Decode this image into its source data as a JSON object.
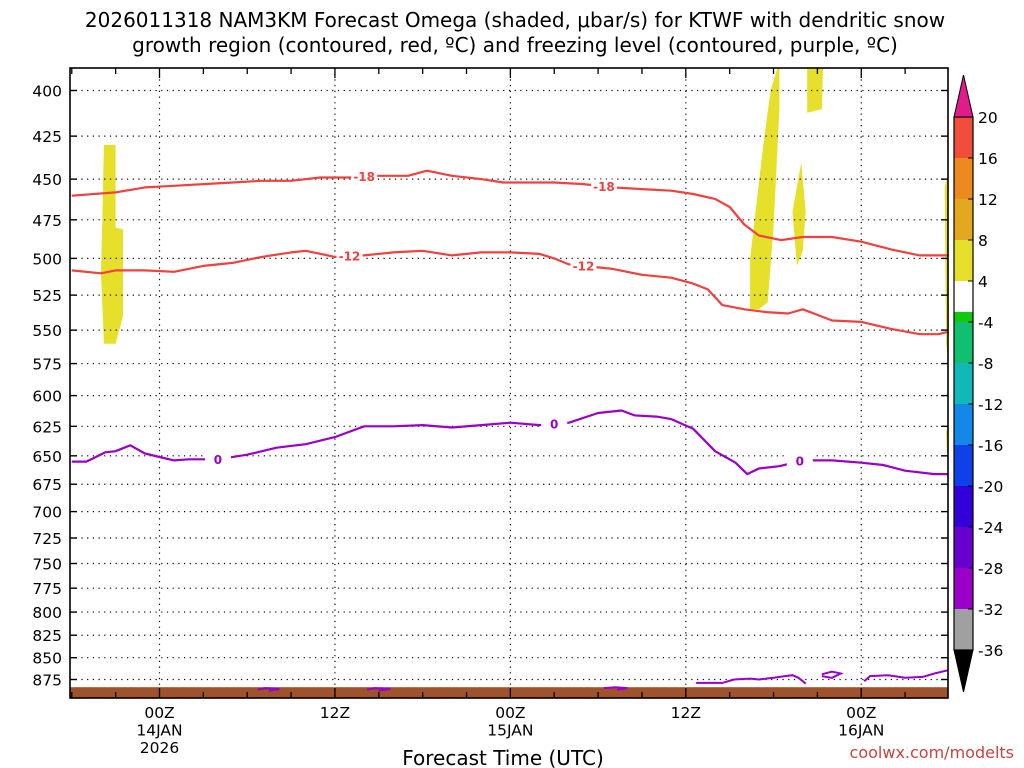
{
  "chart_data": {
    "type": "heatmap",
    "title_line1": "2026011318 NAM3KM Forecast Omega (shaded, μbar/s) for KTWF with dendritic snow",
    "title_line2": "growth region (contoured, red, ºC) and freezing level (contoured, purple, ºC)",
    "xlabel": "Forecast Time (UTC)",
    "credit": "coolwx.com/modelts",
    "x_unit": "hours since 2026-01-13 18Z",
    "xlim": [
      0,
      60
    ],
    "x_ticks": [
      {
        "hour": 6,
        "label1": "00Z",
        "label2": "14JAN",
        "label3": "2026"
      },
      {
        "hour": 18,
        "label1": "12Z",
        "label2": "",
        "label3": ""
      },
      {
        "hour": 30,
        "label1": "00Z",
        "label2": "15JAN",
        "label3": ""
      },
      {
        "hour": 42,
        "label1": "12Z",
        "label2": "",
        "label3": ""
      },
      {
        "hour": 54,
        "label1": "00Z",
        "label2": "16JAN",
        "label3": ""
      }
    ],
    "y_unit": "hPa",
    "ylim": [
      890,
      380
    ],
    "y_ticks": [
      400,
      425,
      450,
      475,
      500,
      525,
      550,
      575,
      600,
      625,
      650,
      675,
      700,
      725,
      750,
      775,
      800,
      825,
      850,
      875
    ],
    "grid": true,
    "colorbar": {
      "min": -36,
      "max": 20,
      "bins": [
        {
          "from": -36,
          "to": -32,
          "color": "#a0a0a0"
        },
        {
          "from": -32,
          "to": -28,
          "color": "#9a00c8"
        },
        {
          "from": -28,
          "to": -24,
          "color": "#6800d0"
        },
        {
          "from": -24,
          "to": -20,
          "color": "#3200d8"
        },
        {
          "from": -20,
          "to": -16,
          "color": "#1040e8"
        },
        {
          "from": -16,
          "to": -12,
          "color": "#1488e8"
        },
        {
          "from": -12,
          "to": -8,
          "color": "#10b8b8"
        },
        {
          "from": -8,
          "to": -4,
          "color": "#10c070"
        },
        {
          "from": -4,
          "to": -2,
          "color": "#10c810"
        },
        {
          "from": -2,
          "to": 4,
          "color": "#ffffff"
        },
        {
          "from": 4,
          "to": 8,
          "color": "#e6e02a"
        },
        {
          "from": 8,
          "to": 12,
          "color": "#e4a820"
        },
        {
          "from": 12,
          "to": 16,
          "color": "#ec8a1e"
        },
        {
          "from": 16,
          "to": 20,
          "color": "#f04e3a"
        }
      ],
      "labels": [
        20,
        16,
        12,
        8,
        4,
        -4,
        -8,
        -12,
        -16,
        -20,
        -24,
        -28,
        -32,
        -36
      ],
      "top_arrow_color": "#e01c8c",
      "bottom_arrow_color": "#000000"
    },
    "shaded_regions": [
      {
        "value": 5,
        "color": "#e6e02a",
        "polygon": [
          [
            2.2,
            430
          ],
          [
            3.0,
            430
          ],
          [
            3.0,
            480
          ],
          [
            3.5,
            481
          ],
          [
            3.5,
            540
          ],
          [
            3.0,
            560
          ],
          [
            2.2,
            560
          ],
          [
            2.0,
            510
          ],
          [
            2.1,
            470
          ]
        ]
      },
      {
        "value": 5,
        "color": "#e6e02a",
        "polygon": [
          [
            46.4,
            500
          ],
          [
            47.3,
            430
          ],
          [
            47.8,
            400
          ],
          [
            48.4,
            385
          ],
          [
            48.4,
            410
          ],
          [
            48.0,
            480
          ],
          [
            47.6,
            530
          ],
          [
            47.0,
            535
          ],
          [
            46.4,
            535
          ]
        ]
      },
      {
        "value": 5,
        "color": "#e6e02a",
        "polygon": [
          [
            50.3,
            385
          ],
          [
            51.4,
            385
          ],
          [
            51.3,
            410
          ],
          [
            50.3,
            412
          ]
        ]
      },
      {
        "value": 5,
        "color": "#e6e02a",
        "polygon": [
          [
            49.3,
            470
          ],
          [
            49.9,
            440
          ],
          [
            50.2,
            470
          ],
          [
            50.0,
            495
          ],
          [
            49.6,
            505
          ]
        ]
      },
      {
        "value": 5,
        "color": "#e6e02a",
        "polygon": [
          [
            59.7,
            455
          ],
          [
            60.0,
            445
          ],
          [
            60.0,
            575
          ],
          [
            59.8,
            560
          ]
        ]
      },
      {
        "value": 5,
        "color": "#e6e02a",
        "polygon": [
          [
            59.8,
            630
          ],
          [
            60.0,
            620
          ],
          [
            60.0,
            652
          ],
          [
            59.85,
            645
          ]
        ]
      }
    ],
    "contours": [
      {
        "value": -18,
        "label": "-18",
        "color": "#f04040",
        "label_hours": [
          20,
          36.4
        ],
        "points": [
          [
            0,
            460
          ],
          [
            3,
            458
          ],
          [
            5,
            455
          ],
          [
            7,
            454
          ],
          [
            9,
            453
          ],
          [
            11,
            452
          ],
          [
            13,
            451
          ],
          [
            15,
            451
          ],
          [
            17,
            449
          ],
          [
            19,
            449
          ],
          [
            21,
            448
          ],
          [
            23,
            448
          ],
          [
            24.3,
            445
          ],
          [
            26,
            448
          ],
          [
            28,
            450
          ],
          [
            29.5,
            452
          ],
          [
            31,
            452
          ],
          [
            33,
            452
          ],
          [
            35,
            453
          ],
          [
            37,
            455
          ],
          [
            39,
            456
          ],
          [
            41,
            457
          ],
          [
            42.5,
            459
          ],
          [
            44,
            462
          ],
          [
            45,
            467
          ],
          [
            46,
            478
          ],
          [
            47,
            485
          ],
          [
            48.5,
            488
          ],
          [
            50,
            486
          ],
          [
            52,
            486
          ],
          [
            54,
            489
          ],
          [
            56,
            494
          ],
          [
            58,
            498
          ],
          [
            60,
            498
          ]
        ]
      },
      {
        "value": -12,
        "label": "-12",
        "color": "#f04040",
        "label_hours": [
          19,
          35
        ],
        "points": [
          [
            0,
            508
          ],
          [
            2,
            510
          ],
          [
            3,
            508
          ],
          [
            5,
            508
          ],
          [
            7,
            509
          ],
          [
            9,
            505
          ],
          [
            11,
            503
          ],
          [
            13,
            499
          ],
          [
            15,
            496
          ],
          [
            16,
            495
          ],
          [
            18,
            499
          ],
          [
            20,
            498
          ],
          [
            22,
            496
          ],
          [
            24,
            495
          ],
          [
            26,
            498
          ],
          [
            28,
            496
          ],
          [
            30,
            496
          ],
          [
            32,
            497
          ],
          [
            33,
            500
          ],
          [
            34,
            504
          ],
          [
            35,
            505
          ],
          [
            36,
            506
          ],
          [
            37,
            507
          ],
          [
            39,
            511
          ],
          [
            41,
            513
          ],
          [
            42.5,
            517
          ],
          [
            43.5,
            521
          ],
          [
            44.5,
            532
          ],
          [
            46,
            535
          ],
          [
            47.5,
            537
          ],
          [
            49,
            538
          ],
          [
            50,
            535
          ],
          [
            51,
            539
          ],
          [
            52,
            543
          ],
          [
            54,
            544
          ],
          [
            56,
            549
          ],
          [
            58,
            553
          ],
          [
            59.3,
            553
          ],
          [
            60,
            551
          ]
        ]
      },
      {
        "value": 0,
        "label": "0",
        "color": "#9a00c8",
        "label_hours": [
          10,
          33,
          49.8
        ],
        "points": [
          [
            0,
            655
          ],
          [
            1,
            655
          ],
          [
            2.3,
            647
          ],
          [
            3,
            646
          ],
          [
            4,
            641
          ],
          [
            5,
            648
          ],
          [
            6,
            651
          ],
          [
            7,
            654
          ],
          [
            8,
            653
          ],
          [
            10,
            653
          ],
          [
            12,
            649
          ],
          [
            14,
            643
          ],
          [
            16,
            640
          ],
          [
            18,
            634
          ],
          [
            20,
            625
          ],
          [
            22,
            625
          ],
          [
            24,
            624
          ],
          [
            26,
            626
          ],
          [
            28,
            624
          ],
          [
            30,
            622
          ],
          [
            32,
            624
          ],
          [
            34,
            622
          ],
          [
            36,
            614
          ],
          [
            37.6,
            612
          ],
          [
            38.5,
            616
          ],
          [
            40,
            617
          ],
          [
            41,
            619
          ],
          [
            42.5,
            627
          ],
          [
            44,
            646
          ],
          [
            45.4,
            656
          ],
          [
            46.2,
            666
          ],
          [
            47,
            661
          ],
          [
            48.4,
            659
          ],
          [
            50,
            654
          ],
          [
            52,
            654
          ],
          [
            54,
            656
          ],
          [
            55.5,
            658
          ],
          [
            57,
            663
          ],
          [
            59,
            666
          ],
          [
            60,
            666
          ]
        ]
      }
    ],
    "small_purple_contours": [
      [
        [
          12.7,
          887
        ],
        [
          13.2,
          885
        ],
        [
          14.2,
          886
        ],
        [
          13.5,
          888
        ]
      ],
      [
        [
          20.2,
          887
        ],
        [
          20.7,
          885
        ],
        [
          21.8,
          886
        ],
        [
          21.0,
          888
        ]
      ],
      [
        [
          36.4,
          885
        ],
        [
          37.2,
          884
        ],
        [
          38.0,
          885
        ],
        [
          37.3,
          887
        ]
      ],
      [
        [
          42.7,
          879
        ],
        [
          43.5,
          879
        ],
        [
          44.5,
          879
        ],
        [
          45.3,
          875
        ],
        [
          46.4,
          874
        ],
        [
          47.0,
          875
        ],
        [
          48.0,
          873
        ],
        [
          48.8,
          871
        ],
        [
          49.3,
          870
        ],
        [
          49.7,
          873
        ],
        [
          50.0,
          877
        ],
        [
          50.2,
          880
        ]
      ],
      [
        [
          51.3,
          869
        ],
        [
          52.0,
          866
        ],
        [
          52.6,
          868
        ],
        [
          52.0,
          873
        ],
        [
          51.3,
          871
        ]
      ],
      [
        [
          54.2,
          877
        ],
        [
          54.6,
          871
        ],
        [
          55.8,
          870
        ],
        [
          57.0,
          873
        ],
        [
          58.2,
          872
        ],
        [
          59.0,
          868
        ],
        [
          60.0,
          864
        ]
      ]
    ],
    "terrain": {
      "color": "#a0522d",
      "top_hpa": 884,
      "bottom_hpa": 890
    }
  }
}
